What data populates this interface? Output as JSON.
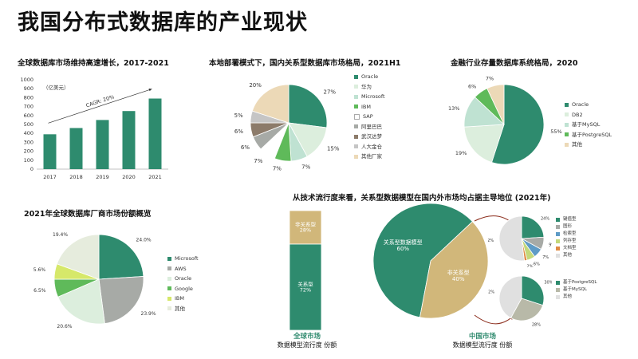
{
  "page_title": "我国分布式数据库的产业现状",
  "colors": {
    "green": "#2e8b6e",
    "cream": "#ecd9b7",
    "lightgreen": "#dceedd",
    "tan": "#d1b77a",
    "gray": "#a7aaa6"
  },
  "chart_data": [
    {
      "id": "global-market",
      "type": "bar",
      "title": "全球数据库市场维持高速增长，2017-2021",
      "unit": "（亿美元）",
      "categories": [
        "2017",
        "2018",
        "2019",
        "2020",
        "2021"
      ],
      "values": [
        390,
        460,
        550,
        650,
        790
      ],
      "ylim": [
        0,
        1000
      ],
      "yticks": [
        "0",
        "100",
        "200",
        "300",
        "400",
        "500",
        "600",
        "700",
        "800",
        "900",
        "1000"
      ],
      "annotation": "CAGR: 20%",
      "color": "#2e8b6e"
    },
    {
      "id": "domestic-rdbms",
      "type": "pie",
      "title": "本地部署模式下，国内关系型数据库市场格局，2021H1",
      "slices": [
        {
          "name": "Oracle",
          "value": 27,
          "label": "27%",
          "color": "#2e8b6e"
        },
        {
          "name": "华为",
          "value": 15,
          "label": "15%",
          "color": "#dceedd"
        },
        {
          "name": "Microsoft",
          "value": 7,
          "label": "7%",
          "color": "#bfe2d2"
        },
        {
          "name": "IBM",
          "value": 7,
          "label": "7%",
          "color": "#5fba5a"
        },
        {
          "name": "SAP",
          "value": 7,
          "label": "7%",
          "color": "#ffffff"
        },
        {
          "name": "阿里巴巴",
          "value": 6,
          "label": "6%",
          "color": "#a7aaa6"
        },
        {
          "name": "武汉达梦",
          "value": 6,
          "label": "6%",
          "color": "#8c7b6a"
        },
        {
          "name": "人大金仓",
          "value": 5,
          "label": "5%",
          "color": "#c5c5c5"
        },
        {
          "name": "其他厂家",
          "value": 20,
          "label": "20%",
          "color": "#ecd9b7"
        }
      ]
    },
    {
      "id": "finance-db",
      "type": "pie",
      "title": "金融行业存量数据库系统格局，2020",
      "slices": [
        {
          "name": "Oracle",
          "value": 55,
          "label": "55%",
          "color": "#2e8b6e"
        },
        {
          "name": "DB2",
          "value": 19,
          "label": "19%",
          "color": "#dceedd"
        },
        {
          "name": "基于MySQL",
          "value": 13,
          "label": "13%",
          "color": "#bfe2d2"
        },
        {
          "name": "基于PostgreSQL",
          "value": 6,
          "label": "6%",
          "color": "#5fba5a"
        },
        {
          "name": "其他",
          "value": 7,
          "label": "7%",
          "color": "#ecd9b7"
        }
      ]
    },
    {
      "id": "vendor-share",
      "type": "pie",
      "title": "2021年全球数据库厂商市场份额概览",
      "slices": [
        {
          "name": "Microsoft",
          "value": 24.0,
          "label": "24.0%",
          "color": "#2e8b6e"
        },
        {
          "name": "AWS",
          "value": 23.9,
          "label": "23.9%",
          "color": "#a7aaa6"
        },
        {
          "name": "Oracle",
          "value": 20.6,
          "label": "20.6%",
          "color": "#dceedd"
        },
        {
          "name": "Google",
          "value": 6.5,
          "label": "6.5%",
          "color": "#5fba5a"
        },
        {
          "name": "IBM",
          "value": 5.6,
          "label": "5.6%",
          "color": "#d6e86a"
        },
        {
          "name": "其他",
          "value": 19.4,
          "label": "19.4%",
          "color": "#e6ecdd"
        }
      ]
    },
    {
      "id": "global-model",
      "type": "bar",
      "stacked": true,
      "title": "从技术流行度来看，关系型数据模型在国内外市场均占据主导地位 (2021年)",
      "series": [
        {
          "name": "关系型",
          "value": 72,
          "label": "关系型\n72%",
          "color": "#2e8b6e"
        },
        {
          "name": "非关系型",
          "value": 28,
          "label": "非关系型\n28%",
          "color": "#d1b77a"
        }
      ],
      "caption_main": "全球市场",
      "caption_sub": "数据模型流行度 份额"
    },
    {
      "id": "china-model",
      "type": "pie",
      "slices": [
        {
          "name": "关系型数据模型",
          "value": 60,
          "label": "关系型数据模型\n60%",
          "color": "#2e8b6e"
        },
        {
          "name": "非关系型",
          "value": 40,
          "label": "非关系型\n40%",
          "color": "#d1b77a"
        }
      ],
      "caption_main": "中国市场",
      "caption_sub": "数据模型流行度 份额"
    },
    {
      "id": "nonrel-breakdown",
      "type": "pie",
      "slices": [
        {
          "name": "键值型",
          "value": 24,
          "label": "24%",
          "color": "#2e8b6e"
        },
        {
          "name": "图形",
          "value": 9,
          "label": "9%",
          "color": "#a7aaa6"
        },
        {
          "name": "检索型",
          "value": 7,
          "label": "7%",
          "color": "#5e9bc6"
        },
        {
          "name": "列存型",
          "value": 6,
          "label": "6%",
          "color": "#c3d87a"
        },
        {
          "name": "文档型",
          "value": 2,
          "label": "2%",
          "color": "#e08a43"
        },
        {
          "name": "其他",
          "value": 52,
          "label": "52%",
          "color": "#e0e0e0"
        }
      ]
    },
    {
      "id": "rel-breakdown",
      "type": "pie",
      "slices": [
        {
          "name": "基于PostgreSQL",
          "value": 30,
          "label": "30%",
          "color": "#2e8b6e"
        },
        {
          "name": "基于MySQL",
          "value": 28,
          "label": "28%",
          "color": "#b8b9a8"
        },
        {
          "name": "其他",
          "value": 42,
          "label": "42%",
          "color": "#e0e0e0"
        }
      ]
    }
  ]
}
